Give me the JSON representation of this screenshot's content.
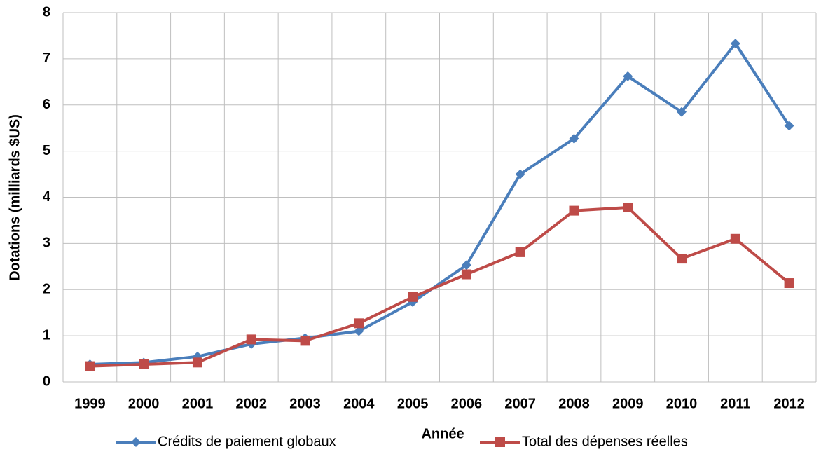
{
  "chart_data": {
    "type": "line",
    "x_label": "Année",
    "y_label": "Dotations (milliards $US)",
    "categories": [
      "1999",
      "2000",
      "2001",
      "2002",
      "2003",
      "2004",
      "2005",
      "2006",
      "2007",
      "2008",
      "2009",
      "2010",
      "2011",
      "2012"
    ],
    "series": [
      {
        "name": "Crédits de paiement globaux",
        "color": "#4a7ebb",
        "marker": "diamond",
        "values": [
          0.38,
          0.42,
          0.55,
          0.82,
          0.95,
          1.1,
          1.73,
          2.53,
          4.5,
          5.27,
          6.62,
          5.85,
          7.33,
          5.55
        ]
      },
      {
        "name": "Total des dépenses réelles",
        "color": "#be4b48",
        "marker": "square",
        "values": [
          0.34,
          0.38,
          0.42,
          0.92,
          0.89,
          1.27,
          1.84,
          2.33,
          2.81,
          3.71,
          3.78,
          2.67,
          3.1,
          2.14
        ]
      }
    ],
    "ylim": [
      0,
      8
    ],
    "yticks": [
      0,
      1,
      2,
      3,
      4,
      5,
      6,
      7,
      8
    ],
    "grid": true,
    "legend": "bottom"
  }
}
